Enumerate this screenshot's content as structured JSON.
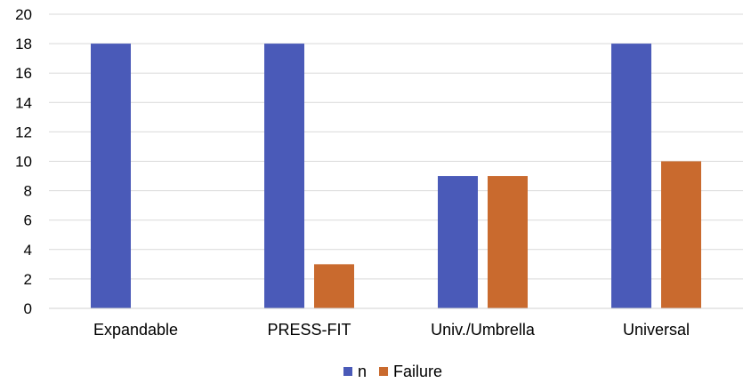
{
  "chart_data": {
    "type": "bar",
    "categories": [
      "Expandable",
      "PRESS-FIT",
      "Univ./Umbrella",
      "Universal"
    ],
    "series": [
      {
        "name": "n",
        "values": [
          18,
          18,
          9,
          18
        ],
        "color": "#4a5ab8"
      },
      {
        "name": "Failure",
        "values": [
          0,
          3,
          9,
          10
        ],
        "color": "#c96a2e"
      }
    ],
    "ylim": [
      0,
      20
    ],
    "yticks": [
      0,
      2,
      4,
      6,
      8,
      10,
      12,
      14,
      16,
      18,
      20
    ],
    "grid": true,
    "legend_position": "bottom",
    "title": "",
    "xlabel": "",
    "ylabel": ""
  }
}
